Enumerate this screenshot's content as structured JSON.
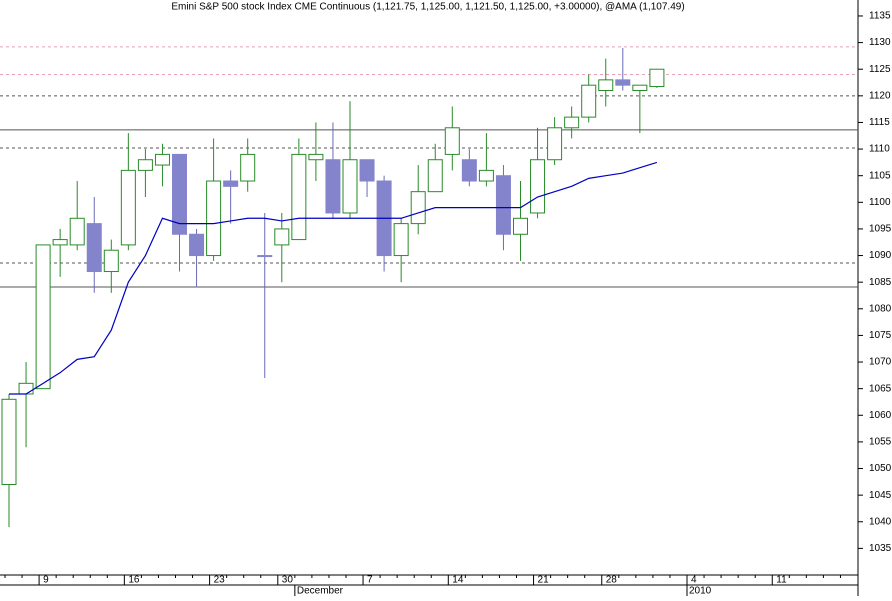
{
  "chart_data": {
    "type": "candlestick",
    "title": "Emini S&P 500 stock Index CME Continuous (1,121.75, 1,125.00, 1,121.50, 1,125.00, +3.00000), @AMA (1,107.49)",
    "categories": [
      null,
      null,
      "9",
      null,
      null,
      null,
      null,
      "16",
      null,
      null,
      null,
      null,
      "23",
      null,
      null,
      null,
      "30",
      null,
      null,
      null,
      null,
      "7",
      null,
      null,
      null,
      null,
      "14",
      null,
      null,
      null,
      null,
      "21",
      null,
      null,
      null,
      "28",
      null,
      null,
      null,
      null,
      "4",
      null,
      null,
      null,
      null,
      "11",
      null,
      null,
      null,
      null
    ],
    "months": [
      null,
      null,
      null,
      null,
      null,
      null,
      null,
      null,
      null,
      null,
      null,
      null,
      null,
      null,
      null,
      null,
      null,
      "December",
      null,
      null,
      null,
      null,
      null,
      null,
      null,
      null,
      null,
      null,
      null,
      null,
      null,
      null,
      null,
      null,
      null,
      null,
      null,
      null,
      null,
      null,
      "2010",
      null,
      null,
      null,
      null,
      null,
      null,
      null,
      null,
      null
    ],
    "open": [
      1047,
      1064,
      1065,
      1092,
      1092,
      1096,
      1087,
      1092,
      1106,
      1107,
      1109,
      1094,
      1090,
      1104,
      1104,
      1090,
      1092,
      1093,
      1108,
      1108,
      1098,
      1108,
      1104,
      1090,
      1096,
      1102,
      1109,
      1108,
      1104,
      1105,
      1094,
      1098,
      1108,
      1114,
      1116,
      1121,
      1123,
      1121,
      1121.75,
      null,
      null,
      null,
      null,
      null,
      null,
      null,
      null,
      null,
      null,
      null
    ],
    "high": [
      1064,
      1070,
      1092,
      1095,
      1104,
      1101,
      1093,
      1113,
      1110,
      1111,
      1109,
      1095,
      1112,
      1106,
      1112,
      1098,
      1098,
      1112,
      1115,
      1115,
      1119,
      1108,
      1105,
      1097,
      1107,
      1111,
      1118,
      1110,
      1113,
      1107,
      1104,
      1114,
      1116,
      1118,
      1124,
      1127,
      1129,
      1122,
      1125,
      null,
      null,
      null,
      null,
      null,
      null,
      null,
      null,
      null,
      null,
      null
    ],
    "low": [
      1039,
      1054,
      1065,
      1086,
      1091,
      1083,
      1083,
      1091,
      1101,
      1103,
      1087,
      1084,
      1089,
      1096,
      1102,
      1067,
      1085,
      1093,
      1104,
      1097,
      1097,
      1101,
      1087,
      1085,
      1094,
      1102,
      1106,
      1103,
      1103,
      1091,
      1089,
      1097,
      1107,
      1112,
      1115,
      1118,
      1121,
      1113,
      1121.5,
      null,
      null,
      null,
      null,
      null,
      null,
      null,
      null,
      null,
      null,
      null
    ],
    "close": [
      1063,
      1066,
      1092,
      1093,
      1097,
      1087,
      1091,
      1106,
      1108,
      1109,
      1094,
      1090,
      1104,
      1103,
      1109,
      1090,
      1095,
      1109,
      1109,
      1098,
      1108,
      1104,
      1090,
      1096,
      1102,
      1108,
      1114,
      1104,
      1106,
      1094,
      1097,
      1108,
      1114,
      1116,
      1122,
      1123,
      1122,
      1122,
      1125,
      null,
      null,
      null,
      null,
      null,
      null,
      null,
      null,
      null,
      null,
      null
    ],
    "up_color": "#2a8a2a",
    "down_color": "#8484cc",
    "ama": {
      "color": "#0000c0",
      "values": [
        1064,
        1064,
        1066,
        1068,
        1070.5,
        1071,
        1076,
        1085,
        1090,
        1097,
        1096,
        1096,
        1096,
        1096.5,
        1097,
        1097,
        1096.5,
        1097,
        1097,
        1097,
        1097,
        1097,
        1097,
        1097,
        1098,
        1099,
        1099,
        1099,
        1099,
        1099,
        1099,
        1101,
        1102,
        1103,
        1104.5,
        1105,
        1105.5,
        1106.5,
        1107.49,
        null,
        null,
        null,
        null,
        null,
        null,
        null,
        null,
        null,
        null,
        null
      ]
    },
    "levels": [
      {
        "value": 1113.6,
        "style": "solid",
        "color": "#555555"
      },
      {
        "value": 1084.1,
        "style": "solid",
        "color": "#555555"
      },
      {
        "value": 1110.2,
        "style": "dashed",
        "color": "#555555"
      },
      {
        "value": 1088.6,
        "style": "dashed",
        "color": "#555555"
      },
      {
        "value": 1120,
        "style": "dashed",
        "color": "#555555"
      },
      {
        "value": 1129.2,
        "style": "dashed",
        "color": "#e8a0b4"
      },
      {
        "value": 1124,
        "style": "dashed",
        "color": "#e8a0b4"
      }
    ],
    "ylim": [
      1030,
      1138
    ],
    "yticks": [
      1035,
      1040,
      1045,
      1050,
      1055,
      1060,
      1065,
      1070,
      1075,
      1080,
      1085,
      1090,
      1095,
      1100,
      1105,
      1110,
      1115,
      1120,
      1125,
      1130,
      1135
    ]
  }
}
